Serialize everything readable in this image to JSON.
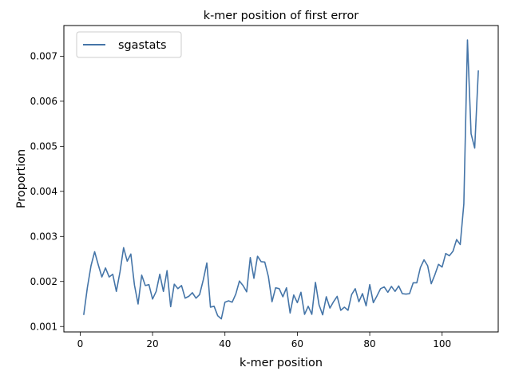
{
  "chart_data": {
    "type": "line",
    "title": "k-mer position of first error",
    "xlabel": "k-mer position",
    "ylabel": "Proportion",
    "xlim": [
      -4.5,
      115.5
    ],
    "ylim": [
      0.00088,
      0.00768
    ],
    "xticks": [
      0,
      20,
      40,
      60,
      80,
      100
    ],
    "xtick_labels": [
      "0",
      "20",
      "40",
      "60",
      "80",
      "100"
    ],
    "yticks": [
      0.001,
      0.002,
      0.003,
      0.004,
      0.005,
      0.006,
      0.007
    ],
    "ytick_labels": [
      "0.001",
      "0.002",
      "0.003",
      "0.004",
      "0.005",
      "0.006",
      "0.007"
    ],
    "grid": false,
    "legend_position": "top-left",
    "series": [
      {
        "name": "sgastats",
        "color": "#4575a8",
        "x": [
          1,
          2,
          3,
          4,
          5,
          6,
          7,
          8,
          9,
          10,
          11,
          12,
          13,
          14,
          15,
          16,
          17,
          18,
          19,
          20,
          21,
          22,
          23,
          24,
          25,
          26,
          27,
          28,
          29,
          30,
          31,
          32,
          33,
          34,
          35,
          36,
          37,
          38,
          39,
          40,
          41,
          42,
          43,
          44,
          45,
          46,
          47,
          48,
          49,
          50,
          51,
          52,
          53,
          54,
          55,
          56,
          57,
          58,
          59,
          60,
          61,
          62,
          63,
          64,
          65,
          66,
          67,
          68,
          69,
          70,
          71,
          72,
          73,
          74,
          75,
          76,
          77,
          78,
          79,
          80,
          81,
          82,
          83,
          84,
          85,
          86,
          87,
          88,
          89,
          90,
          91,
          92,
          93,
          94,
          95,
          96,
          97,
          98,
          99,
          100,
          101,
          102,
          103,
          104,
          105,
          106,
          107,
          108,
          109,
          110
        ],
        "values": [
          0.00127,
          0.00187,
          0.00235,
          0.00266,
          0.00237,
          0.0021,
          0.0023,
          0.0021,
          0.00216,
          0.00178,
          0.00221,
          0.00275,
          0.00245,
          0.00261,
          0.00192,
          0.0015,
          0.00214,
          0.00191,
          0.00193,
          0.00161,
          0.00178,
          0.00216,
          0.00178,
          0.00224,
          0.00144,
          0.00194,
          0.00184,
          0.00191,
          0.00163,
          0.00167,
          0.00175,
          0.00163,
          0.00171,
          0.00203,
          0.00241,
          0.00143,
          0.00145,
          0.00124,
          0.00117,
          0.00154,
          0.00157,
          0.00154,
          0.00172,
          0.00201,
          0.00191,
          0.00177,
          0.00253,
          0.00207,
          0.00256,
          0.00244,
          0.00243,
          0.00211,
          0.00155,
          0.00186,
          0.00184,
          0.00166,
          0.00186,
          0.0013,
          0.0017,
          0.00153,
          0.00176,
          0.00127,
          0.00145,
          0.00127,
          0.00198,
          0.00148,
          0.00126,
          0.00166,
          0.00141,
          0.00155,
          0.00167,
          0.00136,
          0.00143,
          0.00136,
          0.00171,
          0.00184,
          0.00155,
          0.00173,
          0.00146,
          0.00193,
          0.00153,
          0.00168,
          0.00184,
          0.00188,
          0.00176,
          0.00189,
          0.00178,
          0.0019,
          0.00173,
          0.00172,
          0.00173,
          0.00197,
          0.00197,
          0.00231,
          0.00248,
          0.00235,
          0.00195,
          0.00215,
          0.00238,
          0.00232,
          0.00262,
          0.00257,
          0.00267,
          0.00293,
          0.00282,
          0.00372,
          0.00736,
          0.00528,
          0.00496,
          0.00667
        ]
      }
    ]
  }
}
